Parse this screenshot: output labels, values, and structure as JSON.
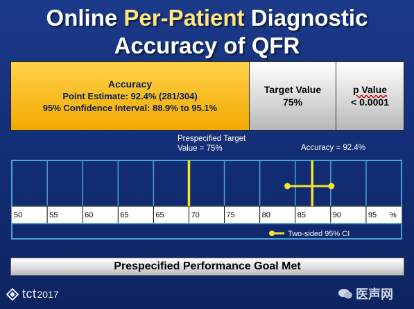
{
  "title": {
    "part1": "Online ",
    "highlight": "Per-Patient",
    "part2": " Diagnostic",
    "line2": "Accuracy of QFR"
  },
  "summary": {
    "accuracy_heading": "Accuracy",
    "point_estimate": "Point Estimate: 92.4% (281/304)",
    "confidence_interval": "95% Confidence Interval: 88.9% to 95.1%",
    "target_label": "Target Value",
    "target_value": "75%",
    "p_label": "p Value",
    "p_value": "< 0.0001"
  },
  "chart_data": {
    "type": "scatter",
    "x_ticks": [
      "50",
      "55",
      "60",
      "65",
      "65",
      "70",
      "75",
      "80",
      "85",
      "90",
      "95"
    ],
    "x_unit": "%",
    "xlim": [
      50,
      100
    ],
    "target": {
      "value": 75,
      "label_line1": "Prespecified Target",
      "label_line2": "Value = 75%"
    },
    "estimate": {
      "value": 92.4,
      "ci_low": 88.9,
      "ci_high": 95.1,
      "label": "Accuracy = 92.4%"
    },
    "legend": "Two-sided 95% CI",
    "colors": {
      "marker": "#f5e52a",
      "border": "#4aa3d8",
      "axis": "#ffffff"
    }
  },
  "goal_text": "Prespecified Performance Goal Met",
  "footer": {
    "brand": "tct",
    "year": "2017",
    "watermark": "医声网"
  }
}
